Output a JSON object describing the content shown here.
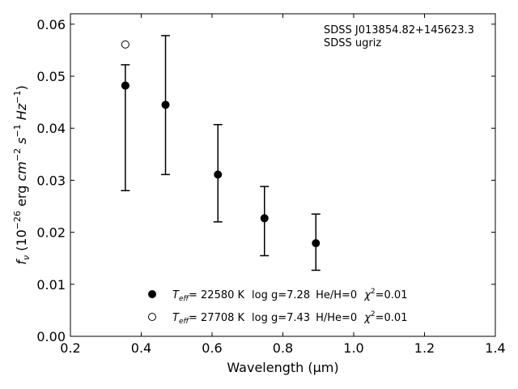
{
  "chart_data": {
    "type": "scatter",
    "xlabel": "Wavelength (μm)",
    "xlim": [
      0.2,
      1.4
    ],
    "ylim": [
      0.0,
      0.062
    ],
    "xticks": [
      "0.2",
      "0.4",
      "0.6",
      "0.8",
      "1.0",
      "1.2",
      "1.4"
    ],
    "yticks": [
      "0.00",
      "0.01",
      "0.02",
      "0.03",
      "0.04",
      "0.05",
      "0.06"
    ],
    "ylabel": {
      "f": "f",
      "sub_nu": "ν",
      "open": " (10",
      "exp26": "−26",
      "erg": " erg ",
      "cm": "cm",
      "exp_m2": "−2",
      "s": " s",
      "exp_m1a": "−1",
      "hz": " Hz",
      "exp_m1b": "−1",
      "close": ")"
    },
    "annotation": {
      "line1": "SDSS J013854.82+145623.3",
      "line2": "SDSS ugriz"
    },
    "observed": {
      "x": [
        0.3551,
        0.4686,
        0.6166,
        0.748,
        0.8932
      ],
      "y": [
        0.0482,
        0.0445,
        0.0311,
        0.0227,
        0.0179
      ],
      "yerr_low": [
        0.028,
        0.0311,
        0.022,
        0.0155,
        0.0127
      ],
      "yerr_high": [
        0.0522,
        0.0578,
        0.0407,
        0.0288,
        0.0235
      ]
    },
    "models": [
      {
        "marker": "filled",
        "x": [
          0.3551
        ],
        "y": [
          0.0482
        ]
      },
      {
        "marker": "open",
        "x": [
          0.3551
        ],
        "y": [
          0.0561
        ]
      }
    ],
    "legend": [
      {
        "marker": "filled",
        "teff_T": "T",
        "teff_sub": "eff",
        "teff_value": "= 22580 K",
        "logg": "log g=7.28",
        "ratio": "He/H=0",
        "chi": "χ",
        "chi_exp": "2",
        "chi_value": "=0.01"
      },
      {
        "marker": "open",
        "teff_T": "T",
        "teff_sub": "eff",
        "teff_value": "= 27708 K",
        "logg": "log g=7.43",
        "ratio": "H/He=0",
        "chi": "χ",
        "chi_exp": "2",
        "chi_value": "=0.01"
      }
    ]
  }
}
